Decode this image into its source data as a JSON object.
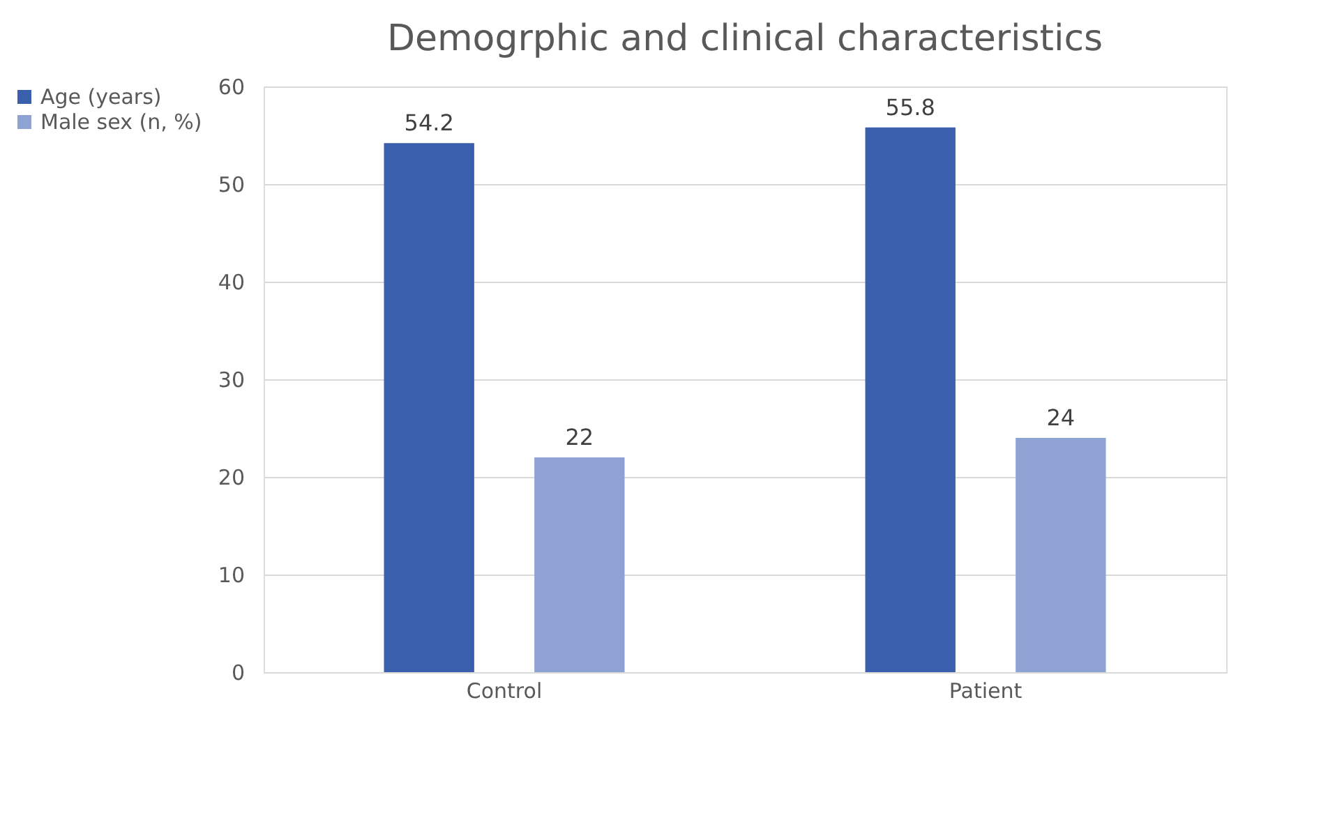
{
  "chart_data": {
    "type": "bar",
    "title": "Demogrphic and clinical characteristics",
    "categories": [
      "Control",
      "Patient"
    ],
    "series": [
      {
        "name": "Age (years)",
        "color": "#3a5fad",
        "values": [
          54.2,
          55.8
        ]
      },
      {
        "name": "Male sex (n, %)",
        "color": "#8ea3d4",
        "values": [
          22,
          24
        ]
      }
    ],
    "ylim": [
      0,
      60
    ],
    "yticks": [
      0,
      10,
      20,
      30,
      40,
      50,
      60
    ],
    "grid": "y",
    "legend": "left",
    "data_labels": true
  }
}
